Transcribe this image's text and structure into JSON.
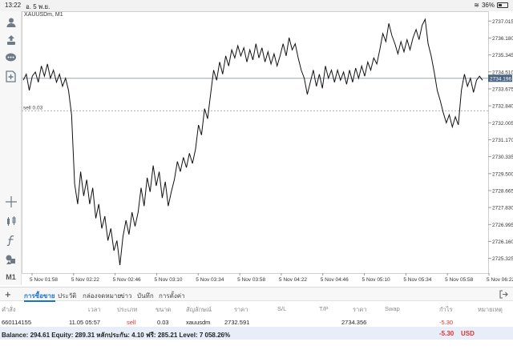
{
  "status_bar": {
    "time": "13:22",
    "date": "อ. 5 พ.ย.",
    "battery": "36%"
  },
  "chart": {
    "title": "XAUUSDm, M1",
    "sell_line_label": "sell 0.03",
    "current_price_label": "2734.196",
    "colors": {
      "line": "#111111",
      "grid": "#ececec",
      "price_line": "#9aa3ad",
      "price_tag": "#4a6583",
      "sell_line": "#b0b0b0"
    }
  },
  "chart_data": {
    "type": "line",
    "title": "XAUUSDm, M1",
    "x_ticks": [
      "5 Nov 01:58",
      "5 Nov 02:22",
      "5 Nov 02:46",
      "5 Nov 03:10",
      "5 Nov 03:34",
      "5 Nov 03:58",
      "5 Nov 04:22",
      "5 Nov 04:46",
      "5 Nov 05:10",
      "5 Nov 05:34",
      "5 Nov 05:58",
      "5 Nov 06:22"
    ],
    "y_ticks": [
      "2737.015",
      "2736.180",
      "2735.345",
      "2734.510",
      "2733.675",
      "2732.840",
      "2732.005",
      "2731.170",
      "2730.335",
      "2729.500",
      "2728.665",
      "2727.830",
      "2726.995",
      "2726.160",
      "2725.325"
    ],
    "ylim": [
      2724.6,
      2737.5
    ],
    "current_price": 2734.196,
    "sell_price": 2732.591,
    "series": [
      {
        "values": [
          2734.1,
          2734.4,
          2733.6,
          2734.3,
          2734.5,
          2734.0,
          2734.8,
          2734.3,
          2734.9,
          2734.2,
          2734.6,
          2734.0,
          2734.4,
          2733.8,
          2734.2,
          2733.6,
          2732.4,
          2729.0,
          2728.0,
          2729.6,
          2728.4,
          2729.2,
          2728.0,
          2728.8,
          2727.3,
          2728.0,
          2726.8,
          2727.4,
          2726.2,
          2726.8,
          2725.7,
          2726.2,
          2725.0,
          2726.4,
          2727.2,
          2726.5,
          2727.6,
          2726.9,
          2727.6,
          2728.8,
          2727.9,
          2729.3,
          2728.6,
          2729.9,
          2728.9,
          2729.6,
          2728.3,
          2729.1,
          2727.9,
          2728.6,
          2729.2,
          2730.1,
          2729.6,
          2730.3,
          2729.8,
          2730.5,
          2730.0,
          2730.7,
          2731.9,
          2731.4,
          2732.7,
          2732.2,
          2733.4,
          2734.6,
          2734.1,
          2735.0,
          2734.4,
          2735.3,
          2734.8,
          2735.6,
          2735.2,
          2735.8,
          2735.3,
          2735.7,
          2735.0,
          2735.6,
          2735.1,
          2735.9,
          2735.2,
          2735.7,
          2735.0,
          2735.5,
          2734.9,
          2735.4,
          2734.8,
          2735.3,
          2735.9,
          2735.3,
          2736.2,
          2735.6,
          2735.9,
          2735.2,
          2734.6,
          2734.2,
          2733.4,
          2734.0,
          2734.6,
          2733.8,
          2734.4,
          2733.7,
          2734.8,
          2734.2,
          2734.6,
          2734.0,
          2734.6,
          2734.1,
          2734.5,
          2733.9,
          2734.6,
          2734.0,
          2734.7,
          2734.2,
          2734.8,
          2734.3,
          2735.0,
          2734.6,
          2735.2,
          2734.9,
          2735.6,
          2736.4,
          2736.0,
          2736.9,
          2736.3,
          2735.9,
          2735.4,
          2736.0,
          2735.5,
          2736.1,
          2735.6,
          2736.2,
          2736.6,
          2736.1,
          2736.8,
          2737.1,
          2735.9,
          2735.3,
          2734.5,
          2733.6,
          2733.1,
          2732.5,
          2732.0,
          2732.4,
          2731.8,
          2732.3,
          2731.9,
          2733.6,
          2734.4,
          2733.8,
          2734.2,
          2733.5,
          2734.1,
          2734.3,
          2734.1
        ]
      }
    ]
  },
  "left_toolbar": {
    "icons": [
      "profile-icon",
      "trade-icon",
      "chat-icon",
      "new-order-icon",
      "crosshair-icon",
      "indicators-icon",
      "function-icon",
      "objects-icon"
    ],
    "timeframe": "M1"
  },
  "tabs": {
    "items": [
      "การซื้อขาย",
      "ประวัติ",
      "กล่องจดหมาย",
      "ข่าว",
      "บันทึก",
      "การตั้งค่า"
    ],
    "active_index": 0
  },
  "table": {
    "headers": [
      "คำสั่ง",
      "เวลา",
      "ประเภท",
      "ขนาด",
      "สัญลักษณ์",
      "ราคา",
      "S/L",
      "T/P",
      "ราคา",
      "Swap",
      "กำไร",
      "หมายเหตุ"
    ],
    "rows": [
      {
        "order": "660114155",
        "time": "11.05 05:57",
        "type": "sell",
        "size": "0.03",
        "symbol": "xauusdm",
        "price": "2732.591",
        "sl": "",
        "tp": "",
        "current_price": "2734.356",
        "swap": "",
        "profit": "-5.30",
        "comment": ""
      }
    ]
  },
  "balance_bar": {
    "text": "Balance: 294.61 Equity: 289.31 หลักประกัน: 4.10 ฟรี: 285.21 Level: 7 058.26%",
    "profit": "-5.30",
    "currency": "USD"
  }
}
